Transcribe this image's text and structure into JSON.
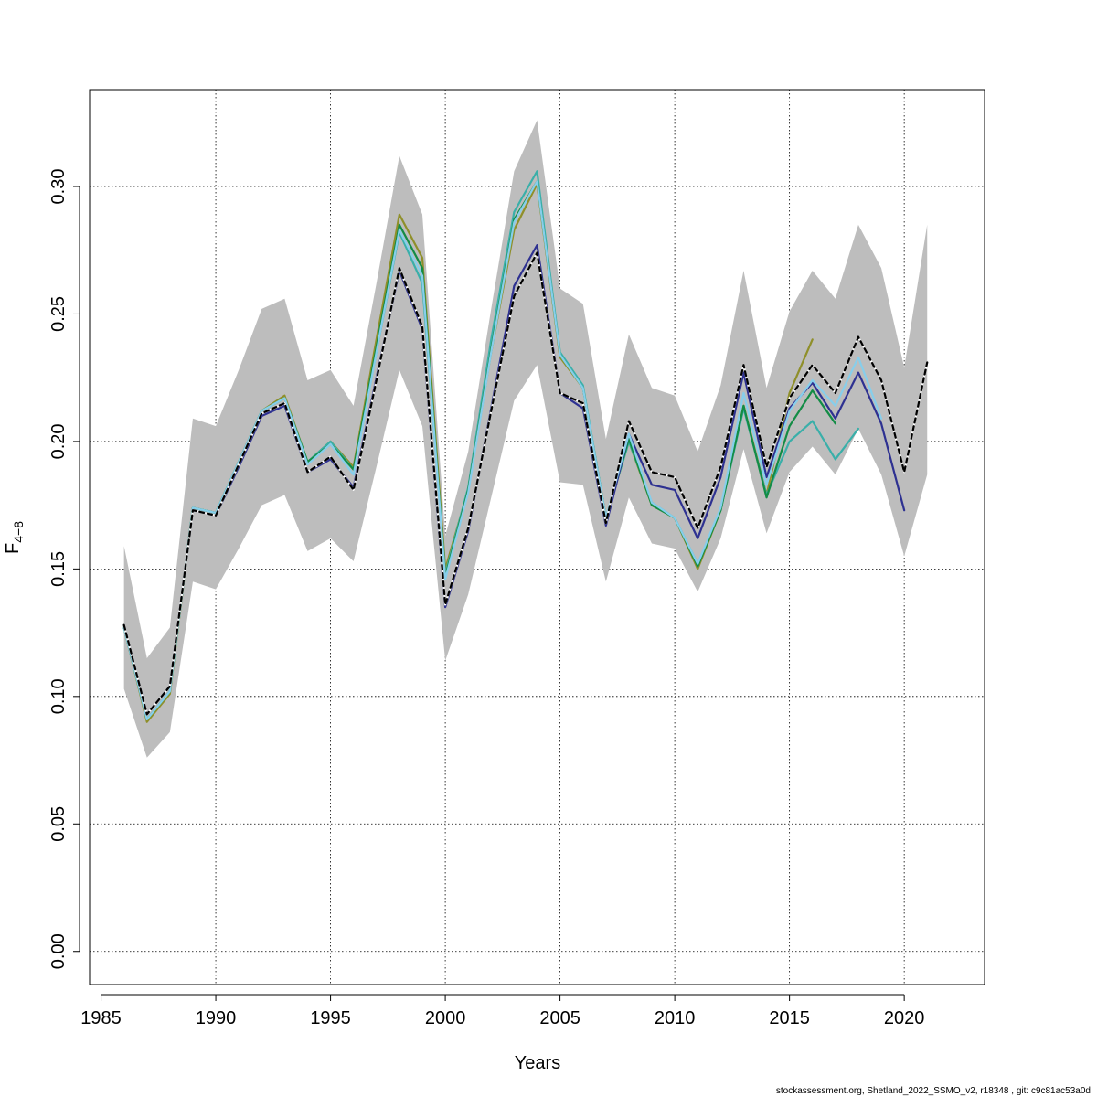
{
  "chart_data": {
    "type": "line",
    "xlabel": "Years",
    "ylabel": "F",
    "ylabel_subscript": "4−8",
    "xlim": [
      1984.5,
      2023.5
    ],
    "ylim": [
      -0.013,
      0.338
    ],
    "x_ticks": [
      1985,
      1990,
      1995,
      2000,
      2005,
      2010,
      2015,
      2020
    ],
    "x_tick_labels": [
      "1985",
      "1990",
      "1995",
      "2000",
      "2005",
      "2010",
      "2015",
      "2020"
    ],
    "y_ticks": [
      0.0,
      0.05,
      0.1,
      0.15,
      0.2,
      0.25,
      0.3
    ],
    "y_tick_labels": [
      "0.00",
      "0.05",
      "0.10",
      "0.15",
      "0.20",
      "0.25",
      "0.30"
    ],
    "grid": true,
    "footer": "stockassessment.org, Shetland_2022_SSMO_v2, r18348 , git: c9c81ac53a0d",
    "confidence_band": {
      "x": [
        1986,
        1987,
        1988,
        1989,
        1990,
        1991,
        1992,
        1993,
        1994,
        1995,
        1996,
        1997,
        1998,
        1999,
        2000,
        2001,
        2002,
        2003,
        2004,
        2005,
        2006,
        2007,
        2008,
        2009,
        2010,
        2011,
        2012,
        2013,
        2014,
        2015,
        2016,
        2017,
        2018,
        2019,
        2020,
        2021
      ],
      "lower": [
        0.103,
        0.076,
        0.086,
        0.145,
        0.142,
        0.158,
        0.175,
        0.179,
        0.157,
        0.162,
        0.153,
        0.19,
        0.228,
        0.206,
        0.114,
        0.14,
        0.178,
        0.216,
        0.23,
        0.184,
        0.183,
        0.145,
        0.178,
        0.16,
        0.158,
        0.141,
        0.162,
        0.197,
        0.164,
        0.188,
        0.198,
        0.187,
        0.205,
        0.187,
        0.155,
        0.187
      ],
      "upper": [
        0.159,
        0.115,
        0.127,
        0.209,
        0.206,
        0.228,
        0.252,
        0.256,
        0.224,
        0.228,
        0.214,
        0.262,
        0.312,
        0.289,
        0.163,
        0.196,
        0.252,
        0.306,
        0.326,
        0.26,
        0.254,
        0.201,
        0.242,
        0.221,
        0.218,
        0.196,
        0.222,
        0.267,
        0.221,
        0.251,
        0.267,
        0.256,
        0.285,
        0.268,
        0.229,
        0.285
      ]
    },
    "series": [
      {
        "color": "#000000",
        "dashed": true,
        "x": [
          1986,
          1987,
          1988,
          1989,
          1990,
          1991,
          1992,
          1993,
          1994,
          1995,
          1996,
          1997,
          1998,
          1999,
          2000,
          2001,
          2002,
          2003,
          2004,
          2005,
          2006,
          2007,
          2008,
          2009,
          2010,
          2011,
          2012,
          2013,
          2014,
          2015,
          2016,
          2017,
          2018,
          2019,
          2020,
          2021
        ],
        "values": [
          0.128,
          0.093,
          0.104,
          0.173,
          0.171,
          0.191,
          0.211,
          0.215,
          0.188,
          0.194,
          0.181,
          0.224,
          0.268,
          0.245,
          0.136,
          0.166,
          0.212,
          0.257,
          0.274,
          0.219,
          0.215,
          0.168,
          0.208,
          0.188,
          0.186,
          0.166,
          0.19,
          0.23,
          0.19,
          0.217,
          0.23,
          0.219,
          0.241,
          0.224,
          0.188,
          0.231
        ]
      },
      {
        "color": "#6b6b6b",
        "dashed": false,
        "x": [
          1986,
          1987,
          1988,
          1989,
          1990,
          1991,
          1992,
          1993,
          1994,
          1995,
          1996,
          1997,
          1998,
          1999,
          2000,
          2001,
          2002,
          2003,
          2004,
          2005,
          2006,
          2007,
          2008,
          2009,
          2010,
          2011,
          2012,
          2013,
          2014,
          2015,
          2016,
          2017,
          2018,
          2019,
          2020,
          2021
        ],
        "values": [
          0.128,
          0.093,
          0.104,
          0.173,
          0.171,
          0.191,
          0.211,
          0.215,
          0.188,
          0.194,
          0.181,
          0.224,
          0.268,
          0.245,
          0.136,
          0.166,
          0.212,
          0.257,
          0.274,
          0.219,
          0.215,
          0.168,
          0.208,
          0.188,
          0.186,
          0.166,
          0.19,
          0.23,
          0.19,
          0.217,
          0.23,
          0.219,
          0.241,
          0.224,
          0.188,
          0.231
        ]
      },
      {
        "color": "#87ceeb",
        "dashed": false,
        "x": [
          1986,
          1987,
          1988,
          1989,
          1990,
          1991,
          1992,
          1993,
          1994,
          1995,
          1996,
          1997,
          1998,
          1999,
          2000,
          2001,
          2002,
          2003,
          2004,
          2005,
          2006,
          2007,
          2008,
          2009,
          2010,
          2011,
          2012,
          2013,
          2014,
          2015,
          2016,
          2017,
          2018,
          2019
        ],
        "values": [
          0.127,
          0.091,
          0.102,
          0.174,
          0.172,
          0.192,
          0.212,
          0.217,
          0.191,
          0.199,
          0.187,
          0.235,
          0.283,
          0.265,
          0.146,
          0.18,
          0.235,
          0.286,
          0.302,
          0.234,
          0.221,
          0.17,
          0.203,
          0.176,
          0.17,
          0.152,
          0.174,
          0.219,
          0.183,
          0.212,
          0.224,
          0.214,
          0.233,
          0.209
        ]
      },
      {
        "color": "#2e3191",
        "dashed": false,
        "x": [
          1986,
          1987,
          1988,
          1989,
          1990,
          1991,
          1992,
          1993,
          1994,
          1995,
          1996,
          1997,
          1998,
          1999,
          2000,
          2001,
          2002,
          2003,
          2004,
          2005,
          2006,
          2007,
          2008,
          2009,
          2010,
          2011,
          2012,
          2013,
          2014,
          2015,
          2016,
          2017,
          2018,
          2019,
          2020
        ],
        "values": [
          0.128,
          0.093,
          0.104,
          0.173,
          0.171,
          0.19,
          0.21,
          0.214,
          0.188,
          0.193,
          0.182,
          0.225,
          0.267,
          0.244,
          0.135,
          0.165,
          0.213,
          0.261,
          0.277,
          0.219,
          0.213,
          0.167,
          0.203,
          0.183,
          0.181,
          0.162,
          0.186,
          0.227,
          0.186,
          0.213,
          0.223,
          0.209,
          0.227,
          0.207,
          0.173
        ]
      },
      {
        "color": "#138c45",
        "dashed": false,
        "x": [
          1986,
          1987,
          1988,
          1989,
          1990,
          1991,
          1992,
          1993,
          1994,
          1995,
          1996,
          1997,
          1998,
          1999,
          2000,
          2001,
          2002,
          2003,
          2004,
          2005,
          2006,
          2007,
          2008,
          2009,
          2010,
          2011,
          2012,
          2013,
          2014,
          2015,
          2016,
          2017
        ],
        "values": [
          0.127,
          0.091,
          0.102,
          0.174,
          0.172,
          0.192,
          0.212,
          0.217,
          0.192,
          0.199,
          0.189,
          0.237,
          0.285,
          0.268,
          0.147,
          0.181,
          0.236,
          0.287,
          0.302,
          0.234,
          0.221,
          0.17,
          0.201,
          0.175,
          0.17,
          0.151,
          0.173,
          0.214,
          0.178,
          0.206,
          0.22,
          0.207
        ]
      },
      {
        "color": "#3aafa9",
        "dashed": false,
        "x": [
          1986,
          1987,
          1988,
          1989,
          1990,
          1991,
          1992,
          1993,
          1994,
          1995,
          1996,
          1997,
          1998,
          1999,
          2000,
          2001,
          2002,
          2003,
          2004,
          2005,
          2006,
          2007,
          2008,
          2009,
          2010,
          2011,
          2012,
          2013,
          2014,
          2015,
          2016,
          2017,
          2018
        ],
        "values": [
          0.127,
          0.091,
          0.102,
          0.174,
          0.172,
          0.192,
          0.212,
          0.217,
          0.192,
          0.2,
          0.189,
          0.235,
          0.282,
          0.262,
          0.148,
          0.182,
          0.24,
          0.29,
          0.306,
          0.235,
          0.222,
          0.17,
          0.2,
          0.176,
          0.17,
          0.152,
          0.173,
          0.213,
          0.179,
          0.2,
          0.208,
          0.193,
          0.205
        ]
      },
      {
        "color": "#8f8f2a",
        "dashed": false,
        "x": [
          1986,
          1987,
          1988,
          1989,
          1990,
          1991,
          1992,
          1993,
          1994,
          1995,
          1996,
          1997,
          1998,
          1999,
          2000,
          2001,
          2002,
          2003,
          2004,
          2005,
          2006,
          2007,
          2008,
          2009,
          2010,
          2011,
          2012,
          2013,
          2014,
          2015,
          2016
        ],
        "values": [
          0.127,
          0.09,
          0.101,
          0.174,
          0.172,
          0.192,
          0.212,
          0.218,
          0.192,
          0.2,
          0.19,
          0.24,
          0.289,
          0.272,
          0.15,
          0.181,
          0.235,
          0.283,
          0.301,
          0.233,
          0.221,
          0.17,
          0.2,
          0.175,
          0.17,
          0.15,
          0.173,
          0.214,
          0.179,
          0.219,
          0.24
        ]
      }
    ]
  }
}
